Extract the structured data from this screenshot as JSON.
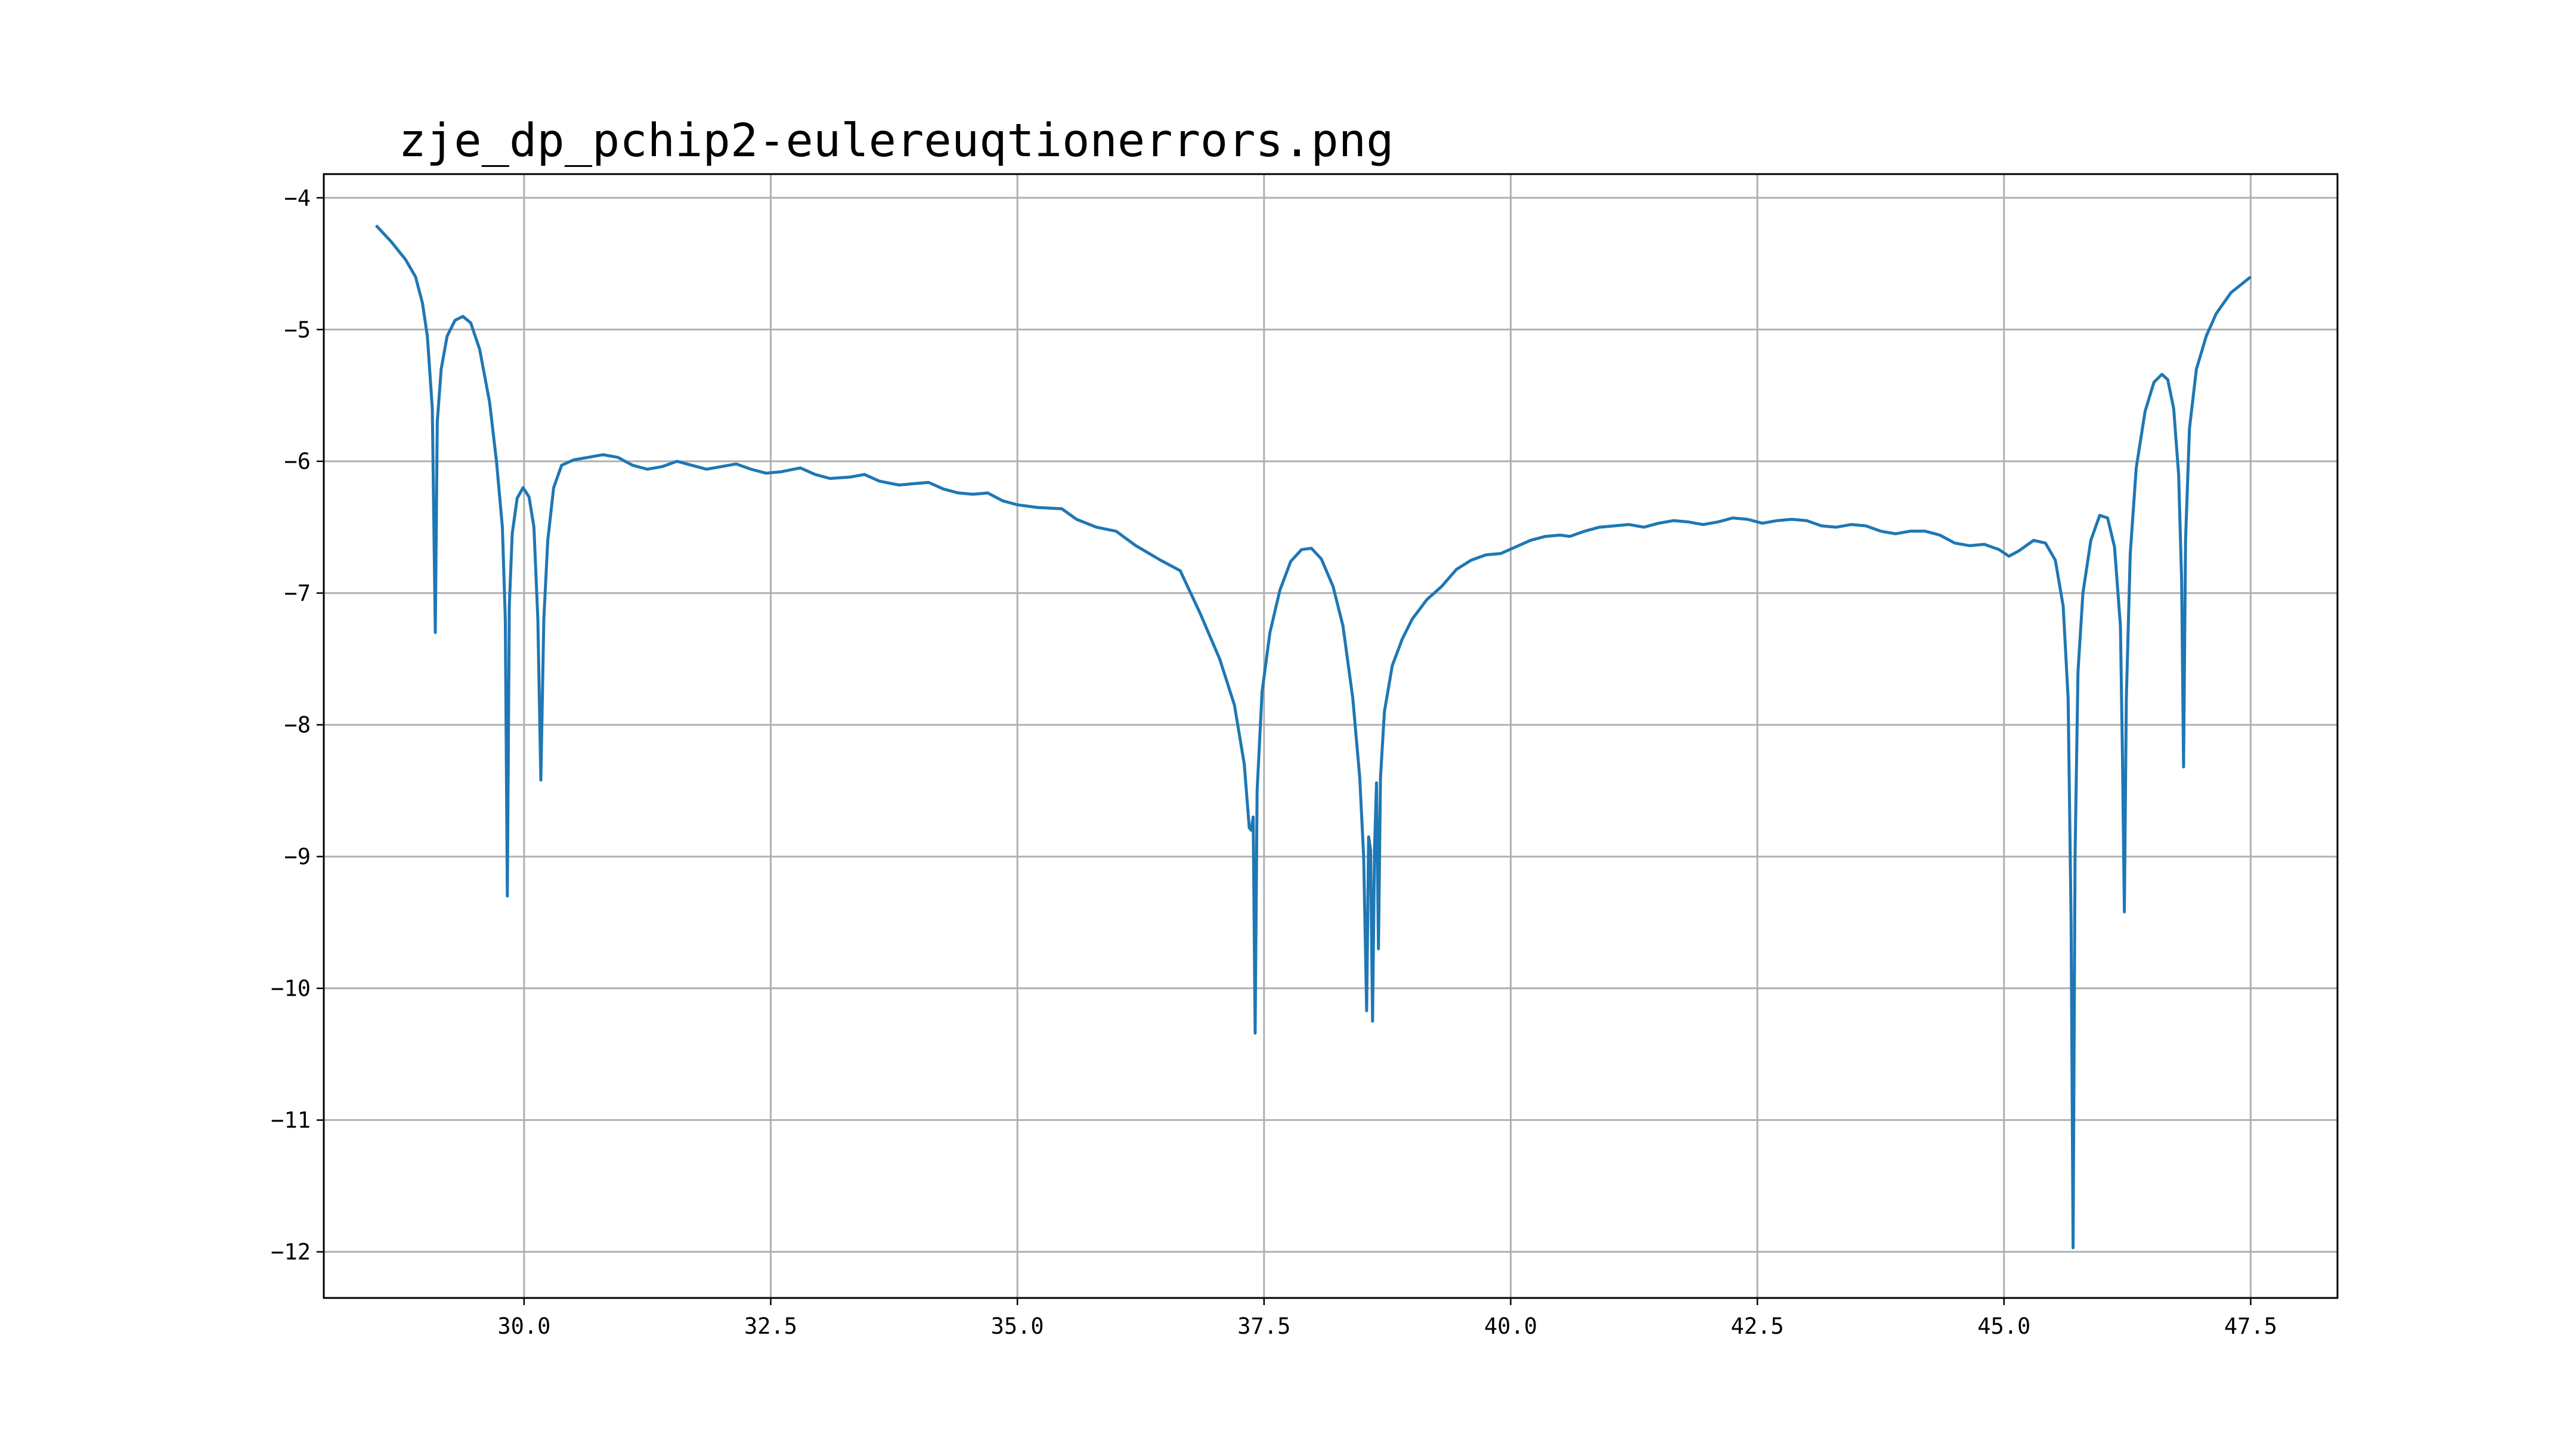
{
  "chart_data": {
    "type": "line",
    "title": "zje_dp_pchip2-eulereuqtionerrors.png",
    "xlabel": "",
    "ylabel": "",
    "xlim": [
      27.97,
      48.38
    ],
    "ylim": [
      -12.35,
      -3.82
    ],
    "xticks": [
      30.0,
      32.5,
      35.0,
      37.5,
      40.0,
      42.5,
      45.0,
      47.5
    ],
    "xtick_labels": [
      "30.0",
      "32.5",
      "35.0",
      "37.5",
      "40.0",
      "42.5",
      "45.0",
      "47.5"
    ],
    "yticks": [
      -4,
      -5,
      -6,
      -7,
      -8,
      -9,
      -10,
      -11,
      -12
    ],
    "ytick_labels": [
      "−4",
      "−5",
      "−6",
      "−7",
      "−8",
      "−9",
      "−10",
      "−11",
      "−12"
    ],
    "grid": true,
    "line_color": "#1f77b4",
    "series": [
      {
        "color": "#1f77b4",
        "points": [
          [
            28.5,
            -4.21
          ],
          [
            28.65,
            -4.33
          ],
          [
            28.8,
            -4.47
          ],
          [
            28.9,
            -4.6
          ],
          [
            28.97,
            -4.8
          ],
          [
            29.02,
            -5.05
          ],
          [
            29.07,
            -5.6
          ],
          [
            29.1,
            -7.3
          ],
          [
            29.12,
            -5.7
          ],
          [
            29.16,
            -5.3
          ],
          [
            29.22,
            -5.05
          ],
          [
            29.3,
            -4.93
          ],
          [
            29.38,
            -4.9
          ],
          [
            29.46,
            -4.95
          ],
          [
            29.55,
            -5.15
          ],
          [
            29.65,
            -5.55
          ],
          [
            29.72,
            -6.0
          ],
          [
            29.78,
            -6.5
          ],
          [
            29.81,
            -7.2
          ],
          [
            29.83,
            -9.3
          ],
          [
            29.85,
            -7.1
          ],
          [
            29.88,
            -6.55
          ],
          [
            29.93,
            -6.28
          ],
          [
            29.99,
            -6.2
          ],
          [
            30.05,
            -6.27
          ],
          [
            30.1,
            -6.5
          ],
          [
            30.14,
            -7.2
          ],
          [
            30.17,
            -8.42
          ],
          [
            30.2,
            -7.2
          ],
          [
            30.24,
            -6.6
          ],
          [
            30.3,
            -6.2
          ],
          [
            30.38,
            -6.03
          ],
          [
            30.5,
            -5.99
          ],
          [
            30.65,
            -5.97
          ],
          [
            30.8,
            -5.95
          ],
          [
            30.95,
            -5.97
          ],
          [
            31.1,
            -6.03
          ],
          [
            31.25,
            -6.06
          ],
          [
            31.4,
            -6.04
          ],
          [
            31.55,
            -6.0
          ],
          [
            31.7,
            -6.03
          ],
          [
            31.85,
            -6.06
          ],
          [
            32.0,
            -6.04
          ],
          [
            32.15,
            -6.02
          ],
          [
            32.3,
            -6.06
          ],
          [
            32.45,
            -6.09
          ],
          [
            32.6,
            -6.08
          ],
          [
            32.8,
            -6.05
          ],
          [
            32.95,
            -6.1
          ],
          [
            33.1,
            -6.13
          ],
          [
            33.3,
            -6.12
          ],
          [
            33.45,
            -6.1
          ],
          [
            33.6,
            -6.15
          ],
          [
            33.8,
            -6.18
          ],
          [
            33.95,
            -6.17
          ],
          [
            34.1,
            -6.16
          ],
          [
            34.25,
            -6.21
          ],
          [
            34.4,
            -6.24
          ],
          [
            34.55,
            -6.25
          ],
          [
            34.7,
            -6.24
          ],
          [
            34.85,
            -6.3
          ],
          [
            35.0,
            -6.33
          ],
          [
            35.2,
            -6.35
          ],
          [
            35.45,
            -6.36
          ],
          [
            35.6,
            -6.44
          ],
          [
            35.8,
            -6.5
          ],
          [
            36.0,
            -6.53
          ],
          [
            36.2,
            -6.64
          ],
          [
            36.45,
            -6.75
          ],
          [
            36.65,
            -6.83
          ],
          [
            36.85,
            -7.15
          ],
          [
            37.05,
            -7.5
          ],
          [
            37.2,
            -7.85
          ],
          [
            37.3,
            -8.3
          ],
          [
            37.35,
            -8.78
          ],
          [
            37.37,
            -8.8
          ],
          [
            37.39,
            -8.7
          ],
          [
            37.41,
            -10.34
          ],
          [
            37.43,
            -8.5
          ],
          [
            37.48,
            -7.75
          ],
          [
            37.56,
            -7.3
          ],
          [
            37.66,
            -6.98
          ],
          [
            37.77,
            -6.76
          ],
          [
            37.88,
            -6.67
          ],
          [
            37.98,
            -6.66
          ],
          [
            38.08,
            -6.74
          ],
          [
            38.2,
            -6.95
          ],
          [
            38.3,
            -7.25
          ],
          [
            38.4,
            -7.8
          ],
          [
            38.47,
            -8.4
          ],
          [
            38.51,
            -9.0
          ],
          [
            38.54,
            -10.17
          ],
          [
            38.56,
            -8.85
          ],
          [
            38.58,
            -8.95
          ],
          [
            38.6,
            -10.25
          ],
          [
            38.62,
            -8.95
          ],
          [
            38.64,
            -8.44
          ],
          [
            38.66,
            -9.7
          ],
          [
            38.68,
            -8.4
          ],
          [
            38.72,
            -7.9
          ],
          [
            38.8,
            -7.55
          ],
          [
            38.9,
            -7.35
          ],
          [
            39.0,
            -7.2
          ],
          [
            39.15,
            -7.05
          ],
          [
            39.3,
            -6.95
          ],
          [
            39.45,
            -6.82
          ],
          [
            39.6,
            -6.75
          ],
          [
            39.75,
            -6.71
          ],
          [
            39.9,
            -6.7
          ],
          [
            40.05,
            -6.65
          ],
          [
            40.2,
            -6.6
          ],
          [
            40.35,
            -6.57
          ],
          [
            40.5,
            -6.56
          ],
          [
            40.6,
            -6.57
          ],
          [
            40.75,
            -6.53
          ],
          [
            40.9,
            -6.5
          ],
          [
            41.05,
            -6.49
          ],
          [
            41.2,
            -6.48
          ],
          [
            41.35,
            -6.5
          ],
          [
            41.5,
            -6.47
          ],
          [
            41.65,
            -6.45
          ],
          [
            41.8,
            -6.46
          ],
          [
            41.95,
            -6.48
          ],
          [
            42.1,
            -6.46
          ],
          [
            42.25,
            -6.43
          ],
          [
            42.4,
            -6.44
          ],
          [
            42.55,
            -6.47
          ],
          [
            42.7,
            -6.45
          ],
          [
            42.85,
            -6.44
          ],
          [
            43.0,
            -6.45
          ],
          [
            43.15,
            -6.49
          ],
          [
            43.3,
            -6.5
          ],
          [
            43.45,
            -6.48
          ],
          [
            43.6,
            -6.49
          ],
          [
            43.75,
            -6.53
          ],
          [
            43.9,
            -6.55
          ],
          [
            44.05,
            -6.53
          ],
          [
            44.2,
            -6.53
          ],
          [
            44.35,
            -6.56
          ],
          [
            44.5,
            -6.62
          ],
          [
            44.65,
            -6.64
          ],
          [
            44.8,
            -6.63
          ],
          [
            44.95,
            -6.67
          ],
          [
            45.05,
            -6.72
          ],
          [
            45.15,
            -6.68
          ],
          [
            45.3,
            -6.6
          ],
          [
            45.42,
            -6.62
          ],
          [
            45.52,
            -6.75
          ],
          [
            45.6,
            -7.1
          ],
          [
            45.65,
            -7.8
          ],
          [
            45.68,
            -9.5
          ],
          [
            45.7,
            -11.97
          ],
          [
            45.72,
            -9.0
          ],
          [
            45.75,
            -7.6
          ],
          [
            45.8,
            -7.0
          ],
          [
            45.88,
            -6.6
          ],
          [
            45.97,
            -6.41
          ],
          [
            46.05,
            -6.43
          ],
          [
            46.12,
            -6.65
          ],
          [
            46.18,
            -7.25
          ],
          [
            46.2,
            -8.2
          ],
          [
            46.22,
            -9.42
          ],
          [
            46.24,
            -7.8
          ],
          [
            46.28,
            -6.7
          ],
          [
            46.34,
            -6.05
          ],
          [
            46.43,
            -5.62
          ],
          [
            46.52,
            -5.4
          ],
          [
            46.6,
            -5.34
          ],
          [
            46.66,
            -5.38
          ],
          [
            46.72,
            -5.6
          ],
          [
            46.77,
            -6.1
          ],
          [
            46.8,
            -6.9
          ],
          [
            46.82,
            -8.32
          ],
          [
            46.84,
            -6.6
          ],
          [
            46.88,
            -5.75
          ],
          [
            46.95,
            -5.3
          ],
          [
            47.05,
            -5.05
          ],
          [
            47.15,
            -4.88
          ],
          [
            47.3,
            -4.72
          ],
          [
            47.5,
            -4.6
          ]
        ]
      }
    ]
  }
}
